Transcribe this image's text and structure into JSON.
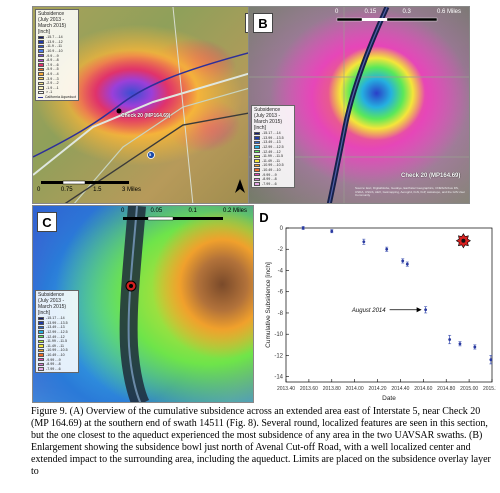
{
  "panels": {
    "a": {
      "letter": "A",
      "legend_title": "Subsidence (July 2013 - March 2015) [inch]",
      "legend_items": [
        {
          "label": "-15.7 - -14",
          "color": "#141a6e"
        },
        {
          "label": "-13.9 - -12",
          "color": "#1f3aa8"
        },
        {
          "label": "-11.9 - -11",
          "color": "#2f55d0"
        },
        {
          "label": "-10.9 - -10",
          "color": "#4a7ae6"
        },
        {
          "label": "-9.9 - -9",
          "color": "#7a4fd8"
        },
        {
          "label": "-8.9 - -8",
          "color": "#b040c8"
        },
        {
          "label": "-7.9 - -6",
          "color": "#e0336b"
        },
        {
          "label": "-5.9 - -5",
          "color": "#f06a2a"
        },
        {
          "label": "-4.9 - -4",
          "color": "#f5a93a"
        },
        {
          "label": "-3.9 - -3",
          "color": "#f5d25a"
        },
        {
          "label": "-2.9 - -2",
          "color": "#f7e68a"
        },
        {
          "label": "-1.9 - -1",
          "color": "#f9f2b8"
        },
        {
          "label": "> -1",
          "color": "#ffffff"
        }
      ],
      "aqueduct_label": "California Aqueduct",
      "check_label": "Check 20 (MP164.69)",
      "highway_label": "5",
      "scale_labels": [
        "0",
        "0.75",
        "1.5",
        "3 Miles"
      ]
    },
    "b": {
      "letter": "B",
      "legend_title": "Subsidence (July 2013 - March 2015) [inch]",
      "legend_items": [
        {
          "label": "-15.17 - -14",
          "color": "#141a6e"
        },
        {
          "label": "-13.99 - -13.5",
          "color": "#1f3aa8"
        },
        {
          "label": "-13.49 - -13",
          "color": "#2f6ad0"
        },
        {
          "label": "-12.99 - -12.5",
          "color": "#25b0e0"
        },
        {
          "label": "-12.49 - -12",
          "color": "#5ae85a"
        },
        {
          "label": "-11.99 - -11.5",
          "color": "#b8ee3a"
        },
        {
          "label": "-11.49 - -11",
          "color": "#f4e63a"
        },
        {
          "label": "-10.99 - -10.5",
          "color": "#f0a02c"
        },
        {
          "label": "-10.49 - -10",
          "color": "#f06a2a"
        },
        {
          "label": "-9.99 - -9",
          "color": "#e646b8"
        },
        {
          "label": "-8.99 - -8",
          "color": "#d87ad8"
        },
        {
          "label": "-7.99 - -6",
          "color": "#e6a8e6"
        }
      ],
      "check_label": "Check 20 (MP164.69)",
      "attribution": "Source: Esri, DigitalGlobe, GeoEye, Earthstar Geographics, CNES/Airbus DS, USDA, USGS, AEX, Getmapping, Aerogrid, IGN, IGP, swisstopo, and the GIS User Community",
      "scale_labels": [
        "0",
        "0.15",
        "0.3",
        "0.6 Miles"
      ]
    },
    "c": {
      "letter": "C",
      "legend_title": "Subsidence (July 2013 - March 2015) [inch]",
      "legend_items": [
        {
          "label": "-15.17 - -14",
          "color": "#141a6e"
        },
        {
          "label": "-13.99 - -13.5",
          "color": "#1f3aa8"
        },
        {
          "label": "-13.49 - -13",
          "color": "#2f6ad0"
        },
        {
          "label": "-12.99 - -12.5",
          "color": "#25b0e0"
        },
        {
          "label": "-12.49 - -12",
          "color": "#5ae85a"
        },
        {
          "label": "-11.99 - -11.5",
          "color": "#b8ee3a"
        },
        {
          "label": "-11.49 - -11",
          "color": "#f4e63a"
        },
        {
          "label": "-10.99 - -10.5",
          "color": "#f0a02c"
        },
        {
          "label": "-10.49 - -10",
          "color": "#f06a2a"
        },
        {
          "label": "-9.99 - -9",
          "color": "#e646b8"
        },
        {
          "label": "-8.99 - -8",
          "color": "#d87ad8"
        },
        {
          "label": "-7.99 - -6",
          "color": "#e6a8e6"
        }
      ],
      "scale_labels": [
        "0",
        "0.05",
        "0.1",
        "0.2 Miles"
      ]
    },
    "d": {
      "letter": "D"
    }
  },
  "chart_data": {
    "type": "scatter",
    "title": "",
    "xlabel": "Date",
    "ylabel": "Cumulative Subsidence [inch]",
    "xlim": [
      2013.4,
      2015.2
    ],
    "ylim": [
      -14.5,
      0
    ],
    "x_ticks": [
      "2013.40",
      "2013.60",
      "2013.80",
      "2014.00",
      "2014.20",
      "2014.40",
      "2014.60",
      "2014.80",
      "2015.00",
      "2015.20"
    ],
    "y_ticks": [
      0,
      -2,
      -4,
      -6,
      -8,
      -10,
      -12,
      -14
    ],
    "grid": false,
    "series": [
      {
        "x": [
          2013.55,
          2013.8,
          2014.08,
          2014.28,
          2014.42,
          2014.46,
          2014.62,
          2014.83,
          2014.92,
          2015.05,
          2015.19
        ],
        "y": [
          0.0,
          -0.3,
          -1.3,
          -2.0,
          -3.1,
          -3.4,
          -7.7,
          -10.5,
          -10.9,
          -11.2,
          -12.4
        ],
        "err": [
          0.15,
          0.15,
          0.25,
          0.2,
          0.2,
          0.2,
          0.3,
          0.4,
          0.2,
          0.2,
          0.4
        ]
      }
    ],
    "highlight": {
      "x": 2014.95,
      "y": -1.2
    },
    "annotation": {
      "text": "August 2014",
      "x": 2014.62,
      "y": -7.7
    }
  },
  "caption": {
    "text": "Figure 9. (A) Overview of the cumulative subsidence across an extended area east of Interstate 5, near Check 20 (MP 164.69) at the southern end of swath 14511 (Fig. 8).  Several round, localized features are seen in this section, but the one closest to the aqueduct experienced the most subsidence of any area in the two UAVSAR swaths. (B) Enlargement showing the subsidence bowl just north of Avenal Cut-off Road, with a well localized center and extended impact to the surrounding area, including the aqueduct.  Limits are placed on the subsidence overlay layer to"
  }
}
